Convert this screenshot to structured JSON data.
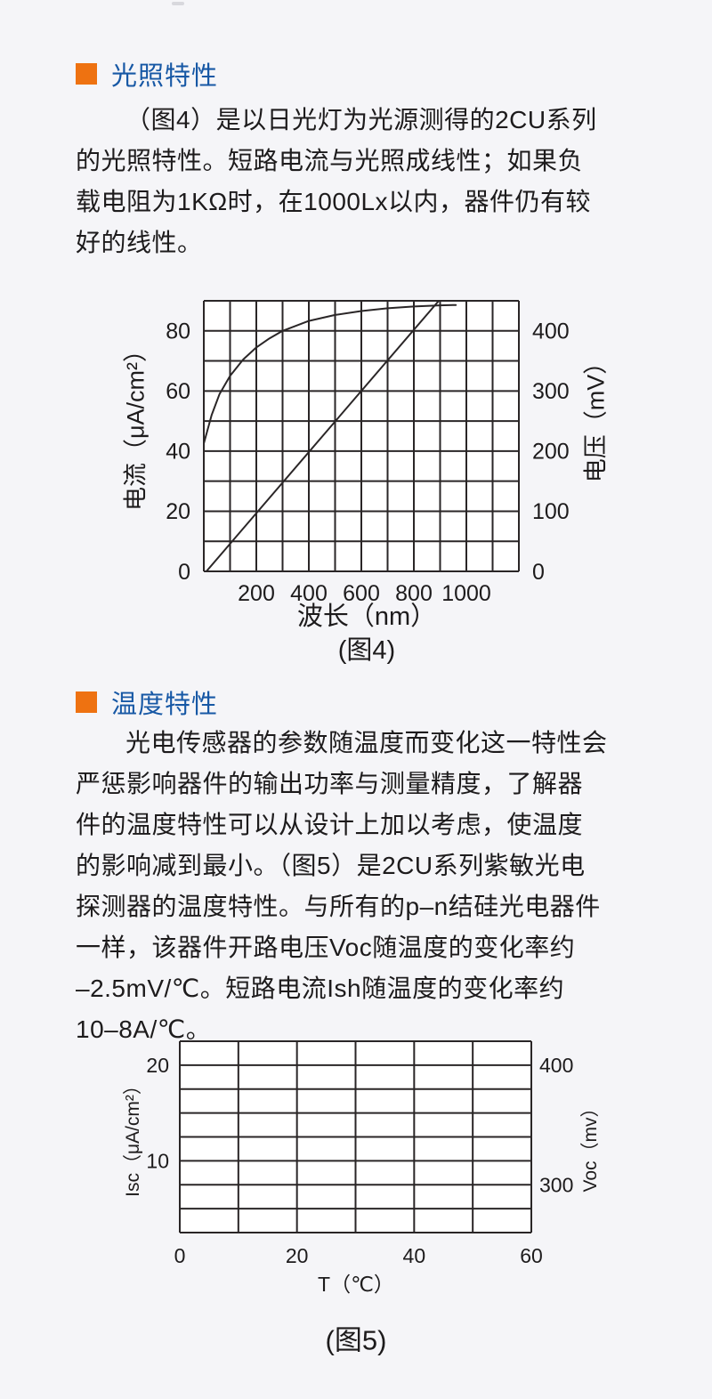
{
  "page": {
    "bg": "#f5f5f8",
    "text_color": "#1d1b1c",
    "top_handle_color": "#d8d8dd",
    "accent_orange": "#ee7211",
    "heading_blue": "#1758a5"
  },
  "sections": [
    {
      "title": "光照特性",
      "lines": [
        "（图4）是以日光灯为光源测得的2CU系列",
        "的光照特性。短路电流与光照成线性；如果负",
        "载电阻为1KΩ时，在1000Lx以内，器件仍有较",
        "好的线性。"
      ]
    },
    {
      "title": "温度特性",
      "lines": [
        "光电传感器的参数随温度而变化这一特性会",
        "严惩影响器件的输出功率与测量精度，了解器",
        "件的温度特性可以从设计上加以考虑，使温度",
        "的影响减到最小。（图5）是2CU系列紫敏光电",
        "探测器的温度特性。与所有的p–n结硅光电器件",
        "一样，该器件开路电压Voc随温度的变化率约",
        "–2.5mV/℃。短路电流Ish随温度的变化率约",
        "10–8A/℃。"
      ]
    }
  ],
  "chart_data": [
    {
      "id": "fig4",
      "type": "line",
      "caption": "(图4)",
      "xlabel": "波长（nm）",
      "ylabel_left": "电流（μA/cm²）",
      "ylabel_right": "电压（mV）",
      "grid": true,
      "stroke": "#2a2627",
      "plot_bg": "#ffffff",
      "x_range": [
        0,
        1200
      ],
      "x_grid_step": 100,
      "y_left_range": [
        0,
        90
      ],
      "y_left_grid_step": 10,
      "y_right_range": [
        0,
        450
      ],
      "x_ticks": [
        200,
        400,
        600,
        800,
        1000
      ],
      "y_left_ticks": [
        0,
        20,
        40,
        60,
        80
      ],
      "y_right_ticks": [
        0,
        100,
        200,
        300,
        400
      ],
      "series": [
        {
          "name": "voltage-saturating-curve",
          "x": [
            0,
            30,
            60,
            100,
            150,
            200,
            250,
            300,
            400,
            500,
            600,
            700,
            800,
            900,
            960
          ],
          "y": [
            42.5,
            52,
            59,
            65,
            70.5,
            74.5,
            77.5,
            80,
            83.3,
            85.3,
            86.6,
            87.5,
            88.1,
            88.5,
            88.6
          ]
        },
        {
          "name": "current-linear-line",
          "x": [
            10,
            895
          ],
          "y": [
            0,
            90
          ]
        }
      ]
    },
    {
      "id": "fig5",
      "type": "line",
      "caption": "(图5)",
      "xlabel": "T（℃）",
      "ylabel_left": "Isc（μA/cm²）",
      "ylabel_right": "Voc（mv）",
      "grid": true,
      "stroke": "#2a2627",
      "plot_bg": "#ffffff",
      "x_range": [
        0,
        60
      ],
      "x_grid_step": 10,
      "y_left_range": [
        2.5,
        22.5
      ],
      "y_left_grid_step": 2.5,
      "y_right_range": [
        260,
        420
      ],
      "x_ticks": [
        0,
        20,
        40,
        60
      ],
      "y_left_ticks": [
        10,
        20
      ],
      "y_right_ticks": [
        300,
        400
      ],
      "series": []
    }
  ]
}
